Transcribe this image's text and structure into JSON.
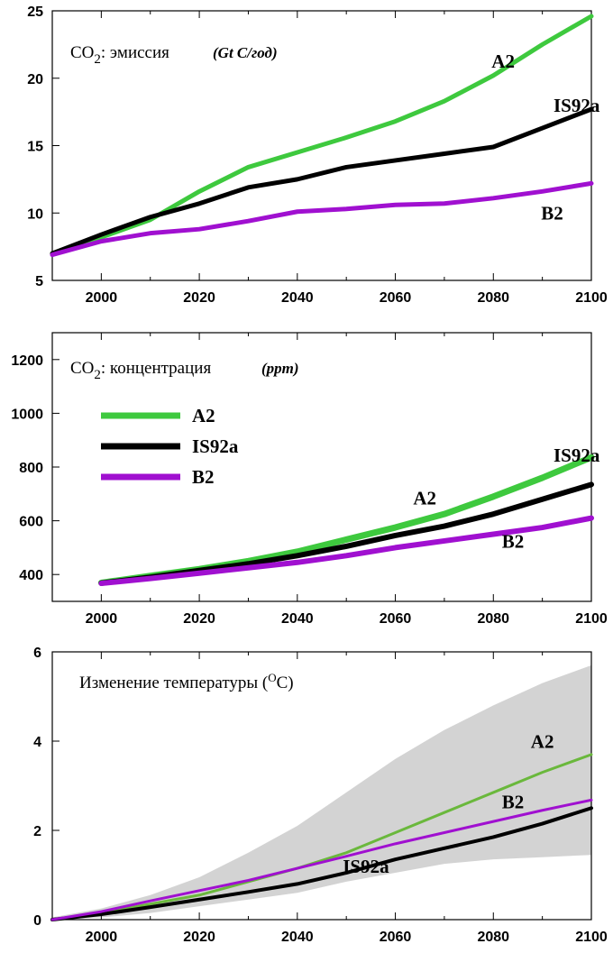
{
  "colors": {
    "A2": "#3ec93e",
    "IS92a": "#000000",
    "B2": "#a010d0",
    "band": "#d3d3d3",
    "A2_temp": "#6ab83c",
    "axis": "#000000"
  },
  "chart_data": [
    {
      "type": "line",
      "title": "CO",
      "title_sub": "2",
      "title_rest": ": эмиссия",
      "unit": "(Gt C/год)",
      "xlim": [
        1990,
        2100
      ],
      "ylim": [
        5,
        25
      ],
      "xticks": [
        2000,
        2020,
        2040,
        2060,
        2080,
        2100
      ],
      "yticks": [
        5,
        10,
        15,
        20,
        25
      ],
      "series": [
        {
          "name": "A2",
          "x": [
            1990,
            2000,
            2010,
            2020,
            2030,
            2040,
            2050,
            2060,
            2070,
            2080,
            2090,
            2100
          ],
          "values": [
            7.0,
            8.2,
            9.5,
            11.6,
            13.4,
            14.5,
            15.6,
            16.8,
            18.3,
            20.2,
            22.5,
            24.6
          ]
        },
        {
          "name": "IS92a",
          "x": [
            1990,
            2000,
            2010,
            2020,
            2030,
            2040,
            2050,
            2060,
            2070,
            2080,
            2090,
            2100
          ],
          "values": [
            7.0,
            8.4,
            9.7,
            10.7,
            11.9,
            12.5,
            13.4,
            13.9,
            14.4,
            14.9,
            16.3,
            17.7
          ]
        },
        {
          "name": "B2",
          "x": [
            1990,
            2000,
            2010,
            2020,
            2030,
            2040,
            2050,
            2060,
            2070,
            2080,
            2090,
            2100
          ],
          "values": [
            6.9,
            7.9,
            8.5,
            8.8,
            9.4,
            10.1,
            10.3,
            10.6,
            10.7,
            11.1,
            11.6,
            12.2
          ]
        }
      ],
      "labels": [
        {
          "series": "A2",
          "text": "A2",
          "x": 2082,
          "y": 20.8
        },
        {
          "series": "IS92a",
          "text": "IS92a",
          "x": 2097,
          "y": 17.5
        },
        {
          "series": "B2",
          "text": "B2",
          "x": 2092,
          "y": 9.5
        }
      ]
    },
    {
      "type": "line",
      "title": "CO",
      "title_sub": "2",
      "title_rest": ": концентрация",
      "unit": "(ppm)",
      "xlim": [
        1990,
        2100
      ],
      "ylim": [
        300,
        1300
      ],
      "xticks": [
        2000,
        2020,
        2040,
        2060,
        2080,
        2100
      ],
      "yticks": [
        400,
        600,
        800,
        1000,
        1200
      ],
      "legend": [
        "A2",
        "IS92a",
        "B2"
      ],
      "series": [
        {
          "name": "A2",
          "x": [
            2000,
            2010,
            2020,
            2030,
            2040,
            2050,
            2060,
            2070,
            2080,
            2090,
            2100
          ],
          "values": [
            369,
            395,
            420,
            450,
            485,
            530,
            575,
            625,
            690,
            760,
            836
          ]
        },
        {
          "name": "IS92a",
          "x": [
            2000,
            2010,
            2020,
            2030,
            2040,
            2050,
            2060,
            2070,
            2080,
            2090,
            2100
          ],
          "values": [
            368,
            390,
            415,
            440,
            470,
            505,
            545,
            580,
            625,
            680,
            735
          ]
        },
        {
          "name": "B2",
          "x": [
            2000,
            2010,
            2020,
            2030,
            2040,
            2050,
            2060,
            2070,
            2080,
            2090,
            2100
          ],
          "values": [
            367,
            385,
            405,
            425,
            445,
            470,
            500,
            525,
            550,
            575,
            610
          ]
        }
      ],
      "labels": [
        {
          "series": "A2",
          "text": "A2",
          "x": 2066,
          "y": 660
        },
        {
          "series": "IS92a",
          "text": "IS92a",
          "x": 2097,
          "y": 820
        },
        {
          "series": "B2",
          "text": "B2",
          "x": 2084,
          "y": 500
        }
      ]
    },
    {
      "type": "line",
      "title": "Изменение температуры (",
      "title_sup": "O",
      "title_rest": "C)",
      "xlim": [
        1990,
        2100
      ],
      "ylim": [
        0,
        6
      ],
      "xticks": [
        2000,
        2020,
        2040,
        2060,
        2080,
        2100
      ],
      "yticks": [
        0,
        2,
        4,
        6
      ],
      "band": {
        "x": [
          1990,
          2000,
          2010,
          2020,
          2030,
          2040,
          2050,
          2060,
          2070,
          2080,
          2090,
          2100
        ],
        "upper": [
          0.05,
          0.25,
          0.55,
          0.95,
          1.5,
          2.1,
          2.85,
          3.6,
          4.25,
          4.8,
          5.3,
          5.7
        ],
        "lower": [
          0.0,
          0.05,
          0.15,
          0.3,
          0.45,
          0.6,
          0.85,
          1.05,
          1.25,
          1.35,
          1.4,
          1.45
        ]
      },
      "series": [
        {
          "name": "A2",
          "x": [
            1990,
            2000,
            2010,
            2020,
            2030,
            2040,
            2050,
            2060,
            2070,
            2080,
            2090,
            2100
          ],
          "values": [
            0.0,
            0.15,
            0.35,
            0.55,
            0.85,
            1.15,
            1.5,
            1.95,
            2.4,
            2.85,
            3.3,
            3.7
          ]
        },
        {
          "name": "IS92a",
          "x": [
            1990,
            2000,
            2010,
            2020,
            2030,
            2040,
            2050,
            2060,
            2070,
            2080,
            2090,
            2100
          ],
          "values": [
            0.0,
            0.12,
            0.28,
            0.45,
            0.62,
            0.8,
            1.05,
            1.35,
            1.6,
            1.85,
            2.15,
            2.5
          ]
        },
        {
          "name": "B2",
          "x": [
            1990,
            2000,
            2010,
            2020,
            2030,
            2040,
            2050,
            2060,
            2070,
            2080,
            2090,
            2100
          ],
          "values": [
            0.0,
            0.18,
            0.42,
            0.65,
            0.88,
            1.15,
            1.42,
            1.7,
            1.95,
            2.2,
            2.45,
            2.68
          ]
        }
      ],
      "labels": [
        {
          "series": "A2",
          "text": "A2",
          "x": 2090,
          "y": 3.85
        },
        {
          "series": "B2",
          "text": "B2",
          "x": 2084,
          "y": 2.5
        },
        {
          "series": "IS92a",
          "text": "IS92a",
          "x": 2054,
          "y": 1.05
        }
      ]
    }
  ]
}
